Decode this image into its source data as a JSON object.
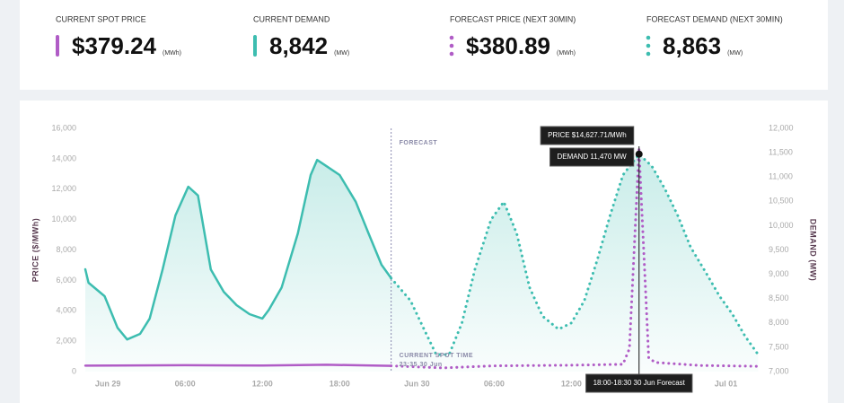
{
  "kpis": [
    {
      "label": "CURRENT SPOT PRICE",
      "value": "$379.24",
      "unit": "(MWh)",
      "color": "#b05cc6",
      "dash": false
    },
    {
      "label": "CURRENT DEMAND",
      "value": "8,842",
      "unit": "(MW)",
      "color": "#3dbdb0",
      "dash": false
    },
    {
      "label": "FORECAST PRICE (NEXT 30MIN)",
      "value": "$380.89",
      "unit": "(MWh)",
      "color": "#b05cc6",
      "dash": true
    },
    {
      "label": "FORECAST DEMAND (NEXT 30MIN)",
      "value": "8,863",
      "unit": "(MW)",
      "color": "#3dbdb0",
      "dash": true
    }
  ],
  "chart_data": {
    "type": "line",
    "y_label": "PRICE ($/MWh)",
    "y2_label": "DEMAND (MW)",
    "xlim": [
      -1.75,
      50.75
    ],
    "xticks": [
      {
        "value": 0,
        "label": "Jun 29"
      },
      {
        "value": 6,
        "label": "06:00"
      },
      {
        "value": 12,
        "label": "12:00"
      },
      {
        "value": 18,
        "label": "18:00"
      },
      {
        "value": 24,
        "label": "Jun 30"
      },
      {
        "value": 30,
        "label": "06:00"
      },
      {
        "value": 36,
        "label": "12:00"
      },
      {
        "value": 42,
        "label": "18:00"
      },
      {
        "value": 48,
        "label": "Jul 01"
      }
    ],
    "ylim": [
      0,
      16000
    ],
    "yticks": [
      0,
      {
        "value": 2000,
        "label": "2,000"
      },
      {
        "value": 4000,
        "label": "4,000"
      },
      {
        "value": 6000,
        "label": "6,000"
      },
      {
        "value": 8000,
        "label": "8,000"
      },
      {
        "value": 10000,
        "label": "10,000"
      },
      {
        "value": 12000,
        "label": "12,000"
      },
      {
        "value": 14000,
        "label": "14,000"
      },
      {
        "value": 16000,
        "label": "16,000"
      }
    ],
    "y2lim": [
      7000,
      12000
    ],
    "y2ticks": [
      {
        "value": 7000,
        "label": "7,000"
      },
      {
        "value": 7500,
        "label": "7,500"
      },
      {
        "value": 8000,
        "label": "8,000"
      },
      {
        "value": 8500,
        "label": "8,500"
      },
      {
        "value": 9000,
        "label": "9,000"
      },
      {
        "value": 9500,
        "label": "9,500"
      },
      {
        "value": 10000,
        "label": "10,000"
      },
      {
        "value": 10500,
        "label": "10,500"
      },
      {
        "value": 11000,
        "label": "11,000"
      },
      {
        "value": 11500,
        "label": "11,500"
      },
      {
        "value": 12000,
        "label": "12,000"
      }
    ],
    "series": [
      {
        "color": "#3dbdb0",
        "axis": "y2",
        "dash": false,
        "area": true,
        "x": [
          -1.75,
          -1.5,
          -0.25,
          0.75,
          1.5,
          2.5,
          3.25,
          4.25,
          5.25,
          6.25,
          7,
          8,
          9,
          10,
          11,
          12,
          12.5,
          13.5,
          14.75,
          15.75,
          16.25,
          17,
          18,
          19.25,
          20.25,
          21.25,
          22
        ],
        "values": [
          9103,
          8827,
          8550,
          7900,
          7660,
          7775,
          8090,
          9100,
          10210,
          10800,
          10620,
          9100,
          8640,
          8365,
          8180,
          8090,
          8270,
          8730,
          9840,
          11040,
          11350,
          11220,
          11040,
          10490,
          9840,
          9195,
          8920
        ]
      },
      {
        "color": "#3dbdb0",
        "axis": "y2",
        "dash": true,
        "area": true,
        "x": [
          22,
          23.5,
          24.5,
          25.5,
          26.5,
          27.5,
          28.5,
          29.75,
          30.75,
          31.75,
          32.75,
          33.75,
          35,
          36,
          37,
          38,
          39,
          40,
          41.25,
          42.25,
          43.25,
          44.25,
          45.25,
          46.5,
          47.5,
          48.5,
          49.5,
          50.5
        ],
        "values": [
          8920,
          8460,
          7900,
          7350,
          7350,
          8000,
          9100,
          10120,
          10490,
          9840,
          8730,
          8140,
          7870,
          8000,
          8460,
          9290,
          10210,
          11040,
          11470,
          11220,
          10760,
          10210,
          9560,
          9010,
          8550,
          8180,
          7720,
          7350
        ]
      },
      {
        "color": "#b05cc6",
        "axis": "y",
        "dash": false,
        "area": false,
        "x": [
          -1.75,
          6,
          12,
          17,
          22
        ],
        "values": [
          390,
          420,
          400,
          450,
          380
        ]
      },
      {
        "color": "#b05cc6",
        "axis": "y",
        "dash": true,
        "area": false,
        "x": [
          22,
          26,
          30,
          36,
          40,
          40.5,
          41.25,
          42,
          42.5,
          46,
          50.5
        ],
        "values": [
          380,
          240,
          380,
          420,
          480,
          1500,
          14627.71,
          900,
          600,
          400,
          350
        ]
      }
    ],
    "forecast_start": 22,
    "forecast_label": "FORECAST",
    "current_time_title": "CURRENT SPOT TIME",
    "current_time": "23:35 30 Jun",
    "hover_x": 41.25,
    "tooltip_price": "PRICE $14,627.71/MWh",
    "tooltip_demand": "DEMAND 11,470 MW",
    "tooltip_time": "18:00-18:30 30 Jun Forecast"
  }
}
